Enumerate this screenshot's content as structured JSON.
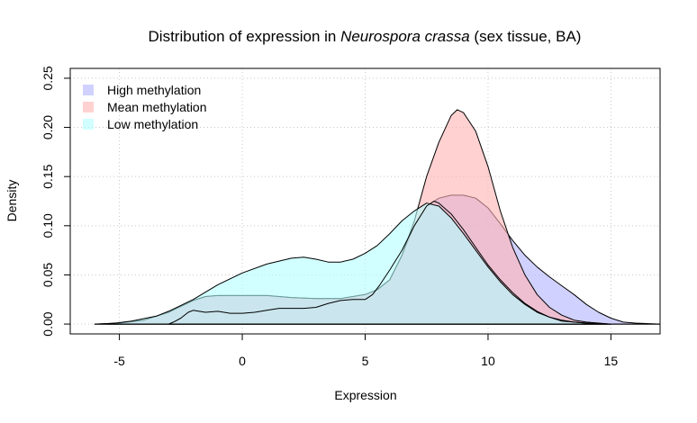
{
  "chart_data": {
    "type": "area",
    "title": {
      "prefix": "Distribution of expression in ",
      "italic": "Neurospora crassa",
      "suffix": " (sex tissue, BA)"
    },
    "xlabel": "Expression",
    "ylabel": "Density",
    "xlim": [
      -7,
      17
    ],
    "ylim": [
      -0.01,
      0.26
    ],
    "x_ticks": [
      -5,
      0,
      5,
      10,
      15
    ],
    "y_ticks": [
      0.0,
      0.05,
      0.1,
      0.15,
      0.2,
      0.25
    ],
    "x_tick_labels": [
      "-5",
      "0",
      "5",
      "10",
      "15"
    ],
    "y_tick_labels": [
      "0.00",
      "0.05",
      "0.10",
      "0.15",
      "0.20",
      "0.25"
    ],
    "grid": true,
    "legend_position": "top-left",
    "series": [
      {
        "name": "High methylation",
        "fill": "#b3b3ff",
        "opacity": 0.6,
        "points": [
          [
            -6,
            0
          ],
          [
            -5,
            0.001
          ],
          [
            -4,
            0.004
          ],
          [
            -3,
            0.012
          ],
          [
            -2,
            0.024
          ],
          [
            -1.5,
            0.028
          ],
          [
            -1,
            0.029
          ],
          [
            0,
            0.029
          ],
          [
            1,
            0.029
          ],
          [
            2,
            0.027
          ],
          [
            3,
            0.026
          ],
          [
            4,
            0.026
          ],
          [
            5,
            0.03
          ],
          [
            5.5,
            0.035
          ],
          [
            6,
            0.045
          ],
          [
            6.5,
            0.07
          ],
          [
            7,
            0.1
          ],
          [
            7.5,
            0.12
          ],
          [
            8,
            0.128
          ],
          [
            8.5,
            0.131
          ],
          [
            9,
            0.131
          ],
          [
            9.5,
            0.128
          ],
          [
            10,
            0.118
          ],
          [
            10.5,
            0.102
          ],
          [
            11,
            0.085
          ],
          [
            11.5,
            0.07
          ],
          [
            12,
            0.058
          ],
          [
            12.5,
            0.048
          ],
          [
            13,
            0.039
          ],
          [
            13.5,
            0.03
          ],
          [
            14,
            0.02
          ],
          [
            14.5,
            0.012
          ],
          [
            15,
            0.006
          ],
          [
            15.5,
            0.002
          ],
          [
            16,
            0.001
          ],
          [
            17,
            0
          ]
        ]
      },
      {
        "name": "Mean methylation",
        "fill": "#ffb3b3",
        "opacity": 0.6,
        "points": [
          [
            -6,
            0
          ],
          [
            -5,
            0.001
          ],
          [
            -4,
            0.004
          ],
          [
            -3,
            0.012
          ],
          [
            -2,
            0.024
          ],
          [
            -1.5,
            0.028
          ],
          [
            -1,
            0.029
          ],
          [
            0,
            0.029
          ],
          [
            1,
            0.029
          ],
          [
            2,
            0.027
          ],
          [
            3,
            0.026
          ],
          [
            4,
            0.026
          ],
          [
            5,
            0.03
          ],
          [
            5.5,
            0.035
          ],
          [
            6,
            0.045
          ],
          [
            6.5,
            0.07
          ],
          [
            7,
            0.105
          ],
          [
            7.5,
            0.15
          ],
          [
            8,
            0.185
          ],
          [
            8.5,
            0.212
          ],
          [
            8.75,
            0.218
          ],
          [
            9,
            0.215
          ],
          [
            9.5,
            0.196
          ],
          [
            10,
            0.16
          ],
          [
            10.5,
            0.115
          ],
          [
            11,
            0.078
          ],
          [
            11.5,
            0.05
          ],
          [
            12,
            0.03
          ],
          [
            12.5,
            0.017
          ],
          [
            13,
            0.009
          ],
          [
            13.5,
            0.004
          ],
          [
            14,
            0.002
          ],
          [
            14.5,
            0.001
          ],
          [
            15,
            0
          ]
        ]
      },
      {
        "name": "Low methylation",
        "fill": "#b3ffff",
        "opacity": 0.6,
        "points": [
          [
            -5.5,
            0
          ],
          [
            -4.5,
            0.003
          ],
          [
            -3.5,
            0.008
          ],
          [
            -3,
            0.013
          ],
          [
            -2,
            0.025
          ],
          [
            -1,
            0.04
          ],
          [
            0,
            0.052
          ],
          [
            1,
            0.061
          ],
          [
            2,
            0.067
          ],
          [
            2.5,
            0.068
          ],
          [
            3,
            0.066
          ],
          [
            3.5,
            0.063
          ],
          [
            4,
            0.063
          ],
          [
            4.5,
            0.066
          ],
          [
            5,
            0.072
          ],
          [
            5.5,
            0.08
          ],
          [
            6,
            0.092
          ],
          [
            6.5,
            0.105
          ],
          [
            7,
            0.115
          ],
          [
            7.5,
            0.123
          ],
          [
            8,
            0.12
          ],
          [
            8.5,
            0.108
          ],
          [
            9,
            0.092
          ],
          [
            9.5,
            0.075
          ],
          [
            10,
            0.058
          ],
          [
            10.5,
            0.043
          ],
          [
            11,
            0.03
          ],
          [
            11.5,
            0.02
          ],
          [
            12,
            0.012
          ],
          [
            12.5,
            0.007
          ],
          [
            13,
            0.004
          ],
          [
            13.5,
            0.002
          ],
          [
            14,
            0.001
          ],
          [
            15,
            0
          ]
        ]
      },
      {
        "name": "",
        "fill": "none",
        "opacity": 1,
        "points": [
          [
            -3,
            0
          ],
          [
            -2.8,
            0.002
          ],
          [
            -2.5,
            0.006
          ],
          [
            -2.2,
            0.012
          ],
          [
            -2,
            0.014
          ],
          [
            -1.5,
            0.012
          ],
          [
            -1,
            0.013
          ],
          [
            -0.5,
            0.011
          ],
          [
            0,
            0.011
          ],
          [
            0.5,
            0.012
          ],
          [
            1,
            0.014
          ],
          [
            1.5,
            0.016
          ],
          [
            2,
            0.016
          ],
          [
            2.5,
            0.016
          ],
          [
            3,
            0.017
          ],
          [
            3.5,
            0.021
          ],
          [
            4,
            0.024
          ],
          [
            4.5,
            0.025
          ],
          [
            5,
            0.025
          ],
          [
            5.3,
            0.03
          ],
          [
            5.6,
            0.04
          ],
          [
            6,
            0.055
          ],
          [
            6.5,
            0.075
          ],
          [
            7,
            0.1
          ],
          [
            7.5,
            0.12
          ],
          [
            7.8,
            0.125
          ],
          [
            8,
            0.123
          ],
          [
            8.5,
            0.112
          ],
          [
            9,
            0.096
          ],
          [
            9.5,
            0.078
          ],
          [
            10,
            0.06
          ],
          [
            10.5,
            0.045
          ],
          [
            11,
            0.032
          ],
          [
            11.5,
            0.021
          ],
          [
            12,
            0.013
          ],
          [
            12.5,
            0.007
          ],
          [
            13,
            0.003
          ],
          [
            14,
            0.001
          ],
          [
            15,
            0
          ]
        ]
      }
    ]
  }
}
